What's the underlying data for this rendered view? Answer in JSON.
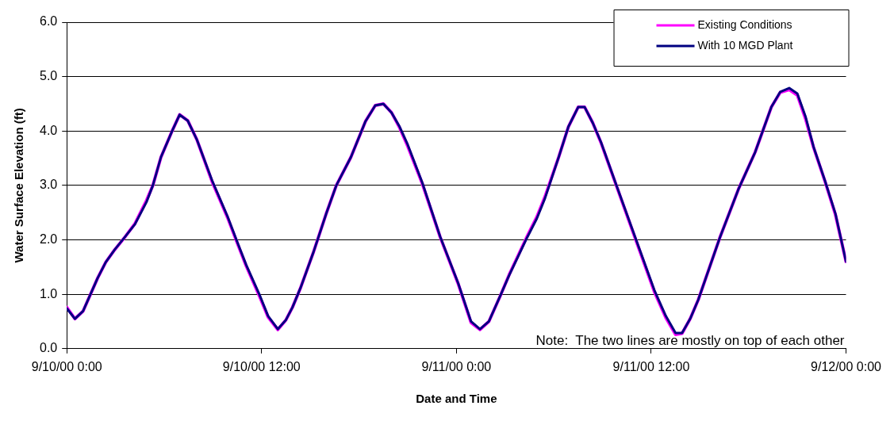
{
  "chart_data": {
    "type": "line",
    "xlabel": "Date and Time",
    "ylabel": "Water Surface Elevation (ft)",
    "xlim": [
      "2000-09-10T00:00",
      "2000-09-12T00:00"
    ],
    "ylim": [
      0,
      6
    ],
    "xticks": [
      {
        "value": "2000-09-10T00:00",
        "label": "9/10/00 0:00"
      },
      {
        "value": "2000-09-10T12:00",
        "label": "9/10/00 12:00"
      },
      {
        "value": "2000-09-11T00:00",
        "label": "9/11/00 0:00"
      },
      {
        "value": "2000-09-11T12:00",
        "label": "9/11/00 12:00"
      },
      {
        "value": "2000-09-12T00:00",
        "label": "9/12/00 0:00"
      }
    ],
    "yticks": [
      {
        "value": 0,
        "label": "0.0"
      },
      {
        "value": 1,
        "label": "1.0"
      },
      {
        "value": 2,
        "label": "2.0"
      },
      {
        "value": 3,
        "label": "3.0"
      },
      {
        "value": 4,
        "label": "4.0"
      },
      {
        "value": 5,
        "label": "5.0"
      },
      {
        "value": 6,
        "label": "6.0"
      }
    ],
    "grid": "y",
    "legend": "top right",
    "marker": "none",
    "line_style": "solid",
    "annotations": [
      "Note:  The two lines are mostly on top of each other"
    ],
    "x": [
      "2000-09-10T00:00",
      "2000-09-10T00:30",
      "2000-09-10T01:00",
      "2000-09-10T01:54",
      "2000-09-10T02:24",
      "2000-09-10T02:57",
      "2000-09-10T03:36",
      "2000-09-10T04:12",
      "2000-09-10T04:54",
      "2000-09-10T05:18",
      "2000-09-10T05:48",
      "2000-09-10T06:30",
      "2000-09-10T06:57",
      "2000-09-10T07:27",
      "2000-09-10T08:00",
      "2000-09-10T08:57",
      "2000-09-10T09:54",
      "2000-09-10T10:30",
      "2000-09-10T11:03",
      "2000-09-10T11:54",
      "2000-09-10T12:24",
      "2000-09-10T13:00",
      "2000-09-10T13:30",
      "2000-09-10T13:54",
      "2000-09-10T14:24",
      "2000-09-10T15:12",
      "2000-09-10T16:00",
      "2000-09-10T16:36",
      "2000-09-10T17:30",
      "2000-09-10T18:24",
      "2000-09-10T19:00",
      "2000-09-10T19:30",
      "2000-09-10T20:00",
      "2000-09-10T20:30",
      "2000-09-10T21:00",
      "2000-09-10T21:54",
      "2000-09-10T23:00",
      "2000-09-11T00:06",
      "2000-09-11T00:54",
      "2000-09-11T01:27",
      "2000-09-11T02:00",
      "2000-09-11T02:42",
      "2000-09-11T03:15",
      "2000-09-11T04:18",
      "2000-09-11T04:57",
      "2000-09-11T05:27",
      "2000-09-11T06:18",
      "2000-09-11T06:54",
      "2000-09-11T07:30",
      "2000-09-11T07:54",
      "2000-09-11T08:24",
      "2000-09-11T08:54",
      "2000-09-11T09:48",
      "2000-09-11T11:00",
      "2000-09-11T12:12",
      "2000-09-11T12:54",
      "2000-09-11T13:30",
      "2000-09-11T13:54",
      "2000-09-11T14:24",
      "2000-09-11T14:54",
      "2000-09-11T16:15",
      "2000-09-11T17:24",
      "2000-09-11T18:24",
      "2000-09-11T19:24",
      "2000-09-11T19:57",
      "2000-09-11T20:30",
      "2000-09-11T21:00",
      "2000-09-11T21:30",
      "2000-09-11T22:00",
      "2000-09-11T22:42",
      "2000-09-11T23:21",
      "2000-09-12T00:00"
    ],
    "series": [
      {
        "name": "Existing Conditions",
        "color": "#ff00ff",
        "values": [
          0.76,
          0.55,
          0.69,
          1.3,
          1.59,
          1.82,
          2.06,
          2.3,
          2.72,
          3.0,
          3.52,
          4.01,
          4.3,
          4.19,
          3.85,
          3.07,
          2.41,
          1.94,
          1.52,
          0.94,
          0.58,
          0.35,
          0.53,
          0.76,
          1.12,
          1.78,
          2.5,
          3.0,
          3.52,
          4.18,
          4.47,
          4.5,
          4.34,
          4.06,
          3.72,
          3.03,
          2.05,
          1.2,
          0.48,
          0.35,
          0.5,
          0.97,
          1.36,
          2.03,
          2.42,
          2.79,
          3.52,
          4.08,
          4.44,
          4.44,
          4.15,
          3.79,
          3.04,
          2.04,
          1.04,
          0.57,
          0.26,
          0.28,
          0.55,
          0.9,
          2.06,
          2.95,
          3.61,
          4.44,
          4.71,
          4.76,
          4.66,
          4.23,
          3.7,
          3.08,
          2.46,
          1.6
        ]
      },
      {
        "name": "With 10 MGD Plant",
        "color": "#000080",
        "values": [
          0.74,
          0.55,
          0.69,
          1.3,
          1.59,
          1.82,
          2.06,
          2.29,
          2.69,
          3.0,
          3.52,
          4.01,
          4.3,
          4.19,
          3.85,
          3.09,
          2.43,
          1.96,
          1.54,
          0.97,
          0.6,
          0.36,
          0.53,
          0.76,
          1.12,
          1.78,
          2.5,
          3.0,
          3.52,
          4.18,
          4.47,
          4.5,
          4.34,
          4.08,
          3.75,
          3.05,
          2.06,
          1.21,
          0.5,
          0.36,
          0.5,
          0.97,
          1.35,
          2.01,
          2.39,
          2.76,
          3.52,
          4.08,
          4.44,
          4.44,
          4.15,
          3.8,
          3.05,
          2.06,
          1.07,
          0.6,
          0.29,
          0.29,
          0.55,
          0.9,
          2.06,
          2.95,
          3.61,
          4.44,
          4.72,
          4.79,
          4.69,
          4.27,
          3.71,
          3.09,
          2.48,
          1.6
        ]
      }
    ]
  }
}
